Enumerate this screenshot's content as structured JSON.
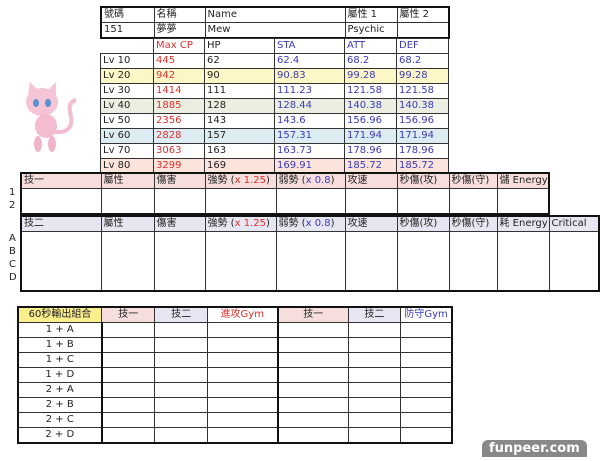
{
  "info": {
    "h_no": "號碼",
    "h_name_zh": "名稱",
    "h_name": "Name",
    "h_type1": "屬性 1",
    "h_type2": "屬性 2",
    "no": "151",
    "name_zh": "夢夢",
    "name": "Mew",
    "type1": "Psychic",
    "type2": ""
  },
  "stats": {
    "headers": [
      "Max CP",
      "HP",
      "STA",
      "ATT",
      "DEF"
    ],
    "rows": [
      {
        "lv": "Lv 10",
        "cp": "445",
        "hp": "62",
        "sta": "62.4",
        "att": "68.2",
        "def": "68.2"
      },
      {
        "lv": "Lv 20",
        "cp": "942",
        "hp": "90",
        "sta": "90.83",
        "att": "99.28",
        "def": "99.28"
      },
      {
        "lv": "Lv 30",
        "cp": "1414",
        "hp": "111",
        "sta": "111.23",
        "att": "121.58",
        "def": "121.58"
      },
      {
        "lv": "Lv 40",
        "cp": "1885",
        "hp": "128",
        "sta": "128.44",
        "att": "140.38",
        "def": "140.38"
      },
      {
        "lv": "Lv 50",
        "cp": "2356",
        "hp": "143",
        "sta": "143.6",
        "att": "156.96",
        "def": "156.96"
      },
      {
        "lv": "Lv 60",
        "cp": "2828",
        "hp": "157",
        "sta": "157.31",
        "att": "171.94",
        "def": "171.94"
      },
      {
        "lv": "Lv 70",
        "cp": "3063",
        "hp": "163",
        "sta": "163.73",
        "att": "178.96",
        "def": "178.96"
      },
      {
        "lv": "Lv 80",
        "cp": "3299",
        "hp": "169",
        "sta": "169.91",
        "att": "185.72",
        "def": "185.72"
      }
    ]
  },
  "skill1": {
    "headers": [
      "技一",
      "屬性",
      "傷害",
      "強勢 (",
      "x 1.25",
      ")",
      "弱勢 (",
      "x 0.8",
      ")",
      "攻速",
      "秒傷(攻)",
      "秒傷(守)",
      "儲 Energy"
    ],
    "rows": [
      "1",
      "2"
    ]
  },
  "skill2": {
    "headers": [
      "技二",
      "屬性",
      "傷害",
      "強勢 (",
      "x 1.25",
      ")",
      "弱勢 (",
      "x 0.8",
      ")",
      "攻速",
      "秒傷(攻)",
      "秒傷(守)",
      "耗 Energy",
      "Critical"
    ],
    "rows": [
      "A",
      "B",
      "C",
      "D"
    ]
  },
  "combo": {
    "headers": [
      "60秒輸出組合",
      "技一",
      "技二",
      "進攻Gym",
      "技一",
      "技二",
      "防守Gym"
    ],
    "rows": [
      "1 + A",
      "1 + B",
      "1 + C",
      "1 + D",
      "2 + A",
      "2 + B",
      "2 + C",
      "2 + D"
    ]
  },
  "watermark": "funpeer.com"
}
